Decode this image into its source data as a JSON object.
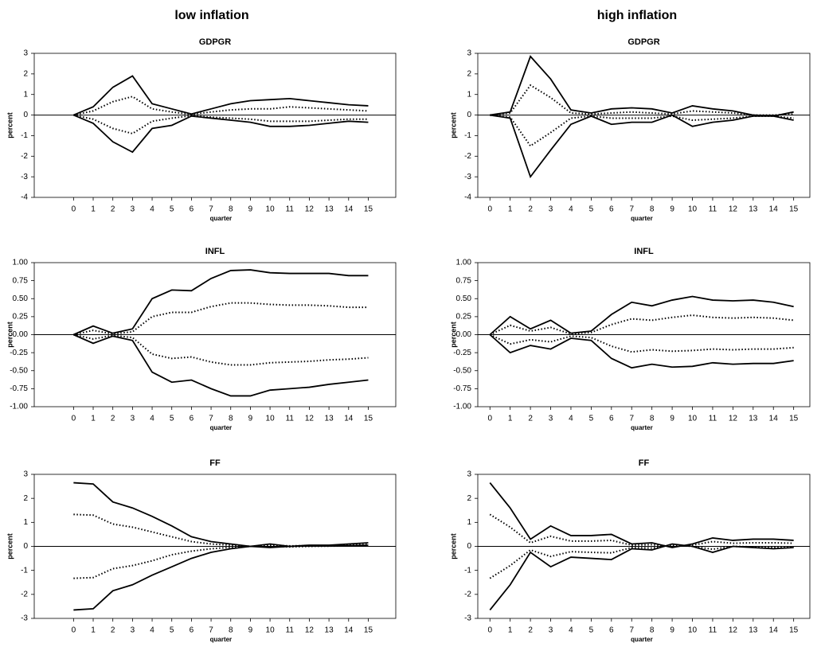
{
  "column_titles": [
    "low inflation",
    "high inflation"
  ],
  "chart_data": [
    {
      "type": "line",
      "title": "GDPGR",
      "xlabel": "quarter",
      "ylabel": "percent",
      "x": [
        0,
        1,
        2,
        3,
        4,
        5,
        6,
        7,
        8,
        9,
        10,
        11,
        12,
        13,
        14,
        15
      ],
      "xlim": [
        -2,
        16.4
      ],
      "xticks": [
        0,
        1,
        2,
        3,
        4,
        5,
        6,
        7,
        8,
        9,
        10,
        11,
        12,
        13,
        14,
        15
      ],
      "ylim": [
        -4,
        3
      ],
      "yticks": [
        -4,
        -3,
        -2,
        -1,
        0,
        1,
        2,
        3
      ],
      "series": [
        {
          "color": "#000000",
          "style": "solid",
          "values": [
            0,
            0.4,
            1.35,
            1.9,
            0.55,
            0.3,
            0.05,
            0.3,
            0.55,
            0.7,
            0.75,
            0.8,
            0.7,
            0.6,
            0.5,
            0.45
          ]
        },
        {
          "color": "#000000",
          "style": "dotted",
          "values": [
            0,
            0.2,
            0.65,
            0.9,
            0.3,
            0.15,
            0.03,
            0.15,
            0.25,
            0.3,
            0.3,
            0.4,
            0.35,
            0.3,
            0.25,
            0.2
          ]
        },
        {
          "color": "#000000",
          "style": "dotted",
          "values": [
            0,
            -0.2,
            -0.65,
            -0.9,
            -0.3,
            -0.15,
            -0.03,
            -0.1,
            -0.15,
            -0.2,
            -0.3,
            -0.3,
            -0.3,
            -0.25,
            -0.2,
            -0.2
          ]
        },
        {
          "color": "#000000",
          "style": "solid",
          "values": [
            0,
            -0.4,
            -1.3,
            -1.8,
            -0.65,
            -0.5,
            -0.05,
            -0.15,
            -0.25,
            -0.35,
            -0.55,
            -0.55,
            -0.5,
            -0.4,
            -0.3,
            -0.35
          ]
        }
      ]
    },
    {
      "type": "line",
      "title": "GDPGR",
      "xlabel": "quarter",
      "ylabel": "percent",
      "x": [
        0,
        1,
        2,
        3,
        4,
        5,
        6,
        7,
        8,
        9,
        10,
        11,
        12,
        13,
        14,
        15
      ],
      "xlim": [
        -0.6,
        15.8
      ],
      "xticks": [
        0,
        1,
        2,
        3,
        4,
        5,
        6,
        7,
        8,
        9,
        10,
        11,
        12,
        13,
        14,
        15
      ],
      "ylim": [
        -4,
        3
      ],
      "yticks": [
        -4,
        -3,
        -2,
        -1,
        0,
        1,
        2,
        3
      ],
      "series": [
        {
          "color": "#000000",
          "style": "solid",
          "values": [
            0,
            0.15,
            2.85,
            1.75,
            0.25,
            0.1,
            0.3,
            0.35,
            0.3,
            0.1,
            0.45,
            0.3,
            0.2,
            0,
            -0.05,
            0.15
          ]
        },
        {
          "color": "#000000",
          "style": "dotted",
          "values": [
            0,
            0.1,
            1.45,
            0.85,
            0.1,
            0.05,
            0.1,
            0.15,
            0.1,
            0.05,
            0.2,
            0.15,
            0.1,
            0,
            0,
            0.05
          ]
        },
        {
          "color": "#000000",
          "style": "dotted",
          "values": [
            0,
            -0.1,
            -1.5,
            -0.85,
            -0.15,
            -0.05,
            -0.15,
            -0.15,
            -0.15,
            -0.05,
            -0.25,
            -0.2,
            -0.15,
            -0.05,
            -0.05,
            -0.15
          ]
        },
        {
          "color": "#000000",
          "style": "solid",
          "values": [
            0,
            -0.15,
            -3,
            -1.7,
            -0.45,
            -0.05,
            -0.45,
            -0.35,
            -0.35,
            0,
            -0.55,
            -0.35,
            -0.25,
            -0.05,
            -0.05,
            -0.25
          ]
        }
      ]
    },
    {
      "type": "line",
      "title": "INFL",
      "xlabel": "quarter",
      "ylabel": "percent",
      "x": [
        0,
        1,
        2,
        3,
        4,
        5,
        6,
        7,
        8,
        9,
        10,
        11,
        12,
        13,
        14,
        15
      ],
      "xlim": [
        -2,
        16.4
      ],
      "xticks": [
        0,
        1,
        2,
        3,
        4,
        5,
        6,
        7,
        8,
        9,
        10,
        11,
        12,
        13,
        14,
        15
      ],
      "ylim": [
        -1,
        1
      ],
      "yticks": [
        {
          "value": -1,
          "label": "-1.00"
        },
        {
          "value": -0.75,
          "label": "-0.75"
        },
        {
          "value": -0.5,
          "label": "-0.50"
        },
        {
          "value": -0.25,
          "label": "-0.25"
        },
        {
          "value": 0,
          "label": "0.00"
        },
        {
          "value": 0.25,
          "label": "0.25"
        },
        {
          "value": 0.5,
          "label": "0.50"
        },
        {
          "value": 0.75,
          "label": "0.75"
        },
        {
          "value": 1,
          "label": "1.00"
        }
      ],
      "series": [
        {
          "color": "#000000",
          "style": "solid",
          "values": [
            0,
            0.12,
            0.02,
            0.08,
            0.5,
            0.62,
            0.61,
            0.78,
            0.89,
            0.9,
            0.86,
            0.85,
            0.85,
            0.85,
            0.82,
            0.82
          ]
        },
        {
          "color": "#000000",
          "style": "dotted",
          "values": [
            0,
            0.06,
            0.01,
            0.04,
            0.25,
            0.31,
            0.31,
            0.39,
            0.44,
            0.44,
            0.42,
            0.41,
            0.41,
            0.4,
            0.38,
            0.38
          ]
        },
        {
          "color": "#000000",
          "style": "dotted",
          "values": [
            0,
            -0.06,
            -0.01,
            -0.04,
            -0.27,
            -0.33,
            -0.31,
            -0.38,
            -0.42,
            -0.42,
            -0.39,
            -0.38,
            -0.37,
            -0.35,
            -0.34,
            -0.32
          ]
        },
        {
          "color": "#000000",
          "style": "solid",
          "values": [
            0,
            -0.12,
            -0.02,
            -0.08,
            -0.52,
            -0.66,
            -0.63,
            -0.75,
            -0.85,
            -0.85,
            -0.77,
            -0.75,
            -0.73,
            -0.69,
            -0.66,
            -0.63
          ]
        }
      ]
    },
    {
      "type": "line",
      "title": "INFL",
      "xlabel": "quarter",
      "ylabel": "percent",
      "x": [
        0,
        1,
        2,
        3,
        4,
        5,
        6,
        7,
        8,
        9,
        10,
        11,
        12,
        13,
        14,
        15
      ],
      "xlim": [
        -0.6,
        15.8
      ],
      "xticks": [
        0,
        1,
        2,
        3,
        4,
        5,
        6,
        7,
        8,
        9,
        10,
        11,
        12,
        13,
        14,
        15
      ],
      "ylim": [
        -1,
        1
      ],
      "yticks": [
        {
          "value": -1,
          "label": "-1.00"
        },
        {
          "value": -0.75,
          "label": "-0.75"
        },
        {
          "value": -0.5,
          "label": "-0.50"
        },
        {
          "value": -0.25,
          "label": "-0.25"
        },
        {
          "value": 0,
          "label": "0.00"
        },
        {
          "value": 0.25,
          "label": "0.25"
        },
        {
          "value": 0.5,
          "label": "0.50"
        },
        {
          "value": 0.75,
          "label": "0.75"
        },
        {
          "value": 1,
          "label": "1.00"
        }
      ],
      "series": [
        {
          "color": "#000000",
          "style": "solid",
          "values": [
            0,
            0.25,
            0.08,
            0.2,
            0.02,
            0.05,
            0.28,
            0.45,
            0.4,
            0.48,
            0.53,
            0.48,
            0.47,
            0.48,
            0.45,
            0.39
          ]
        },
        {
          "color": "#000000",
          "style": "dotted",
          "values": [
            0,
            0.13,
            0.05,
            0.1,
            0.01,
            0.03,
            0.14,
            0.22,
            0.2,
            0.24,
            0.27,
            0.24,
            0.23,
            0.24,
            0.23,
            0.2
          ]
        },
        {
          "color": "#000000",
          "style": "dotted",
          "values": [
            0,
            -0.13,
            -0.07,
            -0.1,
            -0.02,
            -0.04,
            -0.16,
            -0.24,
            -0.21,
            -0.23,
            -0.22,
            -0.2,
            -0.21,
            -0.2,
            -0.2,
            -0.18
          ]
        },
        {
          "color": "#000000",
          "style": "solid",
          "values": [
            0,
            -0.25,
            -0.15,
            -0.2,
            -0.05,
            -0.08,
            -0.33,
            -0.46,
            -0.41,
            -0.45,
            -0.44,
            -0.39,
            -0.41,
            -0.4,
            -0.4,
            -0.36
          ]
        }
      ]
    },
    {
      "type": "line",
      "title": "FF",
      "xlabel": "quarter",
      "ylabel": "percent",
      "x": [
        0,
        1,
        2,
        3,
        4,
        5,
        6,
        7,
        8,
        9,
        10,
        11,
        12,
        13,
        14,
        15
      ],
      "xlim": [
        -2,
        16.4
      ],
      "xticks": [
        0,
        1,
        2,
        3,
        4,
        5,
        6,
        7,
        8,
        9,
        10,
        11,
        12,
        13,
        14,
        15
      ],
      "ylim": [
        -3,
        3
      ],
      "yticks": [
        -3,
        -2,
        -1,
        0,
        1,
        2,
        3
      ],
      "series": [
        {
          "color": "#000000",
          "style": "solid",
          "values": [
            2.65,
            2.6,
            1.85,
            1.6,
            1.25,
            0.85,
            0.4,
            0.2,
            0.1,
            0,
            0.1,
            0,
            0.05,
            0.05,
            0.1,
            0.15
          ]
        },
        {
          "color": "#000000",
          "style": "dotted",
          "values": [
            1.33,
            1.3,
            0.93,
            0.8,
            0.6,
            0.4,
            0.2,
            0.1,
            0.05,
            0,
            0.05,
            0.02,
            0.03,
            0.03,
            0.05,
            0.08
          ]
        },
        {
          "color": "#000000",
          "style": "dotted",
          "values": [
            -1.33,
            -1.3,
            -0.93,
            -0.8,
            -0.6,
            -0.35,
            -0.2,
            -0.1,
            -0.04,
            0,
            0,
            -0.02,
            0,
            0.01,
            0.02,
            0.02
          ]
        },
        {
          "color": "#000000",
          "style": "solid",
          "values": [
            -2.65,
            -2.6,
            -1.85,
            -1.6,
            -1.2,
            -0.85,
            -0.5,
            -0.25,
            -0.1,
            0,
            -0.05,
            0,
            0.02,
            0.02,
            0.03,
            0.05
          ]
        }
      ]
    },
    {
      "type": "line",
      "title": "FF",
      "xlabel": "quarter",
      "ylabel": "percent",
      "x": [
        0,
        1,
        2,
        3,
        4,
        5,
        6,
        7,
        8,
        9,
        10,
        11,
        12,
        13,
        14,
        15
      ],
      "xlim": [
        -0.6,
        15.8
      ],
      "xticks": [
        0,
        1,
        2,
        3,
        4,
        5,
        6,
        7,
        8,
        9,
        10,
        11,
        12,
        13,
        14,
        15
      ],
      "ylim": [
        -3,
        3
      ],
      "yticks": [
        -3,
        -2,
        -1,
        0,
        1,
        2,
        3
      ],
      "series": [
        {
          "color": "#000000",
          "style": "solid",
          "values": [
            2.65,
            1.6,
            0.3,
            0.85,
            0.45,
            0.45,
            0.5,
            0.1,
            0.15,
            -0.05,
            0.1,
            0.35,
            0.25,
            0.3,
            0.3,
            0.25
          ]
        },
        {
          "color": "#000000",
          "style": "dotted",
          "values": [
            1.33,
            0.8,
            0.15,
            0.42,
            0.22,
            0.22,
            0.25,
            0.05,
            0.07,
            0,
            0.05,
            0.2,
            0.13,
            0.15,
            0.15,
            0.13
          ]
        },
        {
          "color": "#000000",
          "style": "dotted",
          "values": [
            -1.33,
            -0.8,
            -0.15,
            -0.42,
            -0.22,
            -0.25,
            -0.27,
            -0.05,
            -0.07,
            0.05,
            0,
            -0.12,
            0,
            -0.02,
            -0.05,
            -0.02
          ]
        },
        {
          "color": "#000000",
          "style": "solid",
          "values": [
            -2.65,
            -1.6,
            -0.25,
            -0.85,
            -0.45,
            -0.5,
            -0.55,
            -0.1,
            -0.15,
            0.1,
            0,
            -0.25,
            0,
            -0.05,
            -0.1,
            -0.05
          ]
        }
      ]
    }
  ]
}
